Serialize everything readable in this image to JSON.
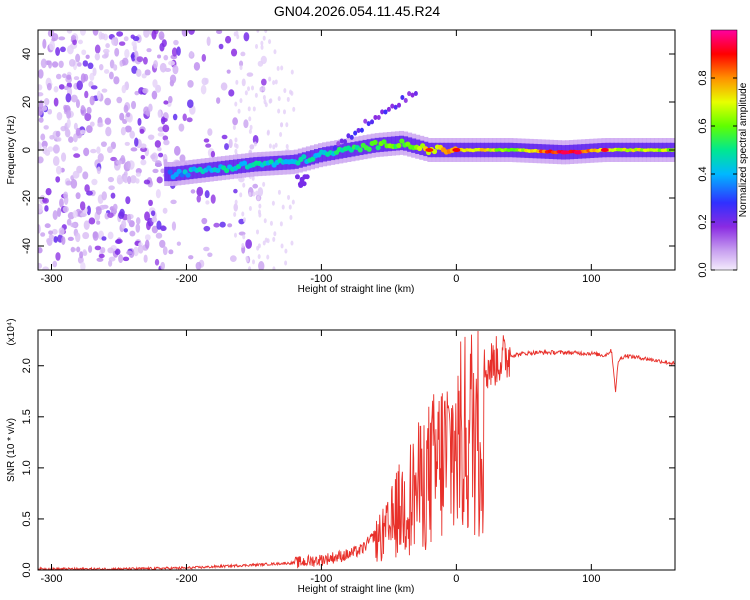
{
  "figure": {
    "title": "GN04.2026.054.11.45.R24"
  },
  "chart_data": [
    {
      "type": "heatmap",
      "xlabel": "Height of straight line (km)",
      "ylabel": "Frequency (Hz)",
      "xlim": [
        -310,
        162
      ],
      "ylim": [
        -50,
        50
      ],
      "xticks": [
        -300,
        -200,
        -100,
        0,
        100
      ],
      "yticks": [
        -40,
        -20,
        0,
        20,
        40
      ],
      "colorbar": {
        "label": "Normalized spectral amplitude",
        "range": [
          0,
          1
        ],
        "ticks": [
          0.0,
          0.2,
          0.4,
          0.6,
          0.8
        ],
        "colors": [
          "#e8d8f8",
          "#c8a0f0",
          "#8a2be2",
          "#4040ff",
          "#00c0ff",
          "#00ff80",
          "#a0ff00",
          "#ffff00",
          "#ff8000",
          "#ff0000",
          "#ff00c0"
        ]
      },
      "ridge": {
        "description_free_values": true,
        "x": [
          -210,
          -180,
          -150,
          -120,
          -100,
          -80,
          -60,
          -40,
          -20,
          0,
          40,
          80,
          110,
          160
        ],
        "y": [
          -10,
          -8,
          -6,
          -5,
          -2,
          0,
          2,
          3,
          0,
          0,
          0,
          -1,
          0,
          0
        ],
        "amplitude": [
          0.35,
          0.45,
          0.45,
          0.45,
          0.45,
          0.5,
          0.55,
          0.6,
          0.7,
          0.8,
          0.6,
          0.95,
          0.7,
          0.65
        ]
      },
      "grid": false
    },
    {
      "type": "line",
      "xlabel": "Height of straight line (km)",
      "ylabel": "SNR (10 * v/v)",
      "multiplier": "(x10⁴)",
      "xlim": [
        -310,
        162
      ],
      "ylim": [
        0,
        2.35
      ],
      "xticks": [
        -300,
        -200,
        -100,
        0,
        100
      ],
      "yticks": [
        0.0,
        0.5,
        1.0,
        1.5,
        2.0
      ],
      "series": [
        {
          "color": "#e8302a",
          "x": [
            -310,
            -250,
            -200,
            -150,
            -120,
            -100,
            -80,
            -70,
            -60,
            -50,
            -45,
            -40,
            -35,
            -30,
            -25,
            -20,
            -15,
            -10,
            -5,
            0,
            5,
            10,
            15,
            20,
            30,
            40,
            50,
            60,
            80,
            100,
            110,
            115,
            118,
            120,
            125,
            140,
            162
          ],
          "y": [
            0.01,
            0.01,
            0.02,
            0.05,
            0.07,
            0.1,
            0.15,
            0.2,
            0.35,
            0.5,
            0.7,
            0.8,
            0.9,
            1.0,
            1.1,
            1.2,
            1.3,
            1.4,
            1.5,
            1.55,
            1.65,
            1.75,
            1.85,
            1.95,
            2.05,
            2.1,
            2.12,
            2.13,
            2.13,
            2.12,
            2.1,
            2.15,
            1.75,
            2.05,
            2.1,
            2.07,
            2.02
          ]
        }
      ],
      "grid": false
    }
  ]
}
